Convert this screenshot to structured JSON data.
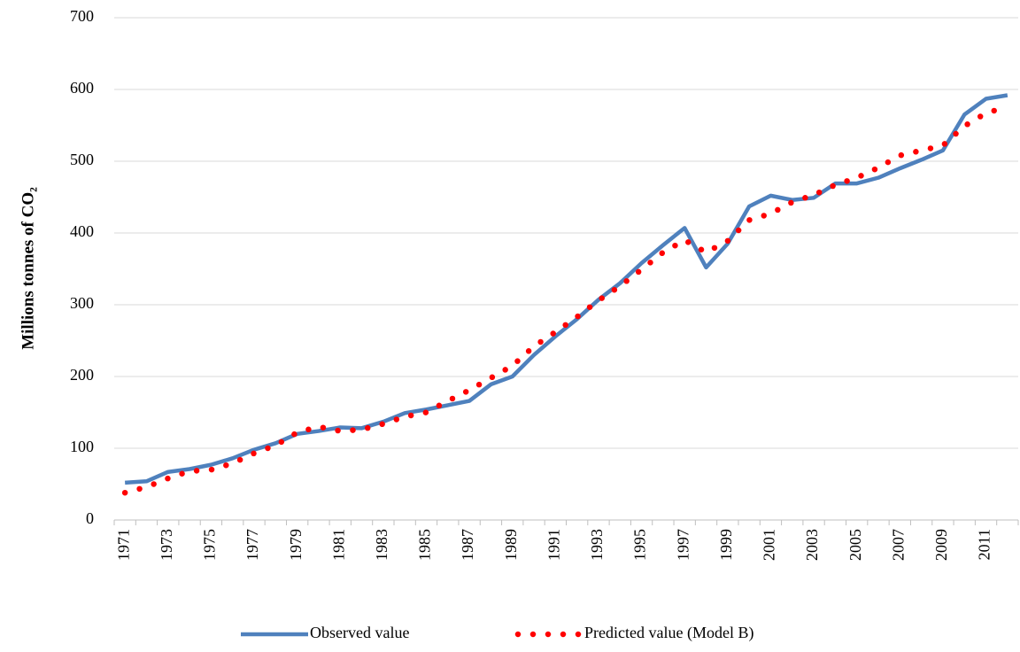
{
  "chart_data": {
    "type": "line",
    "y_label": "Millions  tonnes of CO₂",
    "categories": [
      "1971",
      null,
      "1973",
      null,
      "1975",
      null,
      "1977",
      null,
      "1979",
      null,
      "1981",
      null,
      "1983",
      null,
      "1985",
      null,
      "1987",
      null,
      "1989",
      null,
      "1991",
      null,
      "1993",
      null,
      "1995",
      null,
      "1997",
      null,
      "1999",
      null,
      "2001",
      null,
      "2003",
      null,
      "2005",
      null,
      "2007",
      null,
      "2009",
      null,
      "2011",
      null
    ],
    "series": [
      {
        "name": "Observed value",
        "color": "#4f81bd",
        "style": "solid",
        "values": [
          52,
          54,
          67,
          71,
          77,
          86,
          98,
          107,
          120,
          124,
          129,
          128,
          137,
          149,
          154,
          160,
          166,
          189,
          200,
          230,
          256,
          280,
          307,
          330,
          358,
          383,
          407,
          352,
          385,
          437,
          452,
          446,
          449,
          469,
          469,
          477,
          490,
          502,
          515,
          565,
          587,
          592
        ]
      },
      {
        "name": "Predicted value (Model B)",
        "color": "#ff0000",
        "style": "dotted",
        "values": [
          38,
          46,
          58,
          68,
          70,
          79,
          93,
          104,
          122,
          130,
          124,
          126,
          134,
          144,
          150,
          166,
          181,
          198,
          215,
          242,
          262,
          283,
          306,
          326,
          349,
          373,
          390,
          373,
          389,
          418,
          427,
          443,
          453,
          467,
          477,
          491,
          508,
          515,
          522,
          549,
          567,
          576
        ]
      }
    ],
    "ylim": [
      0,
      700
    ],
    "yticks": [
      0,
      100,
      200,
      300,
      400,
      500,
      600,
      700
    ],
    "grid": true,
    "legend": "bottom"
  }
}
